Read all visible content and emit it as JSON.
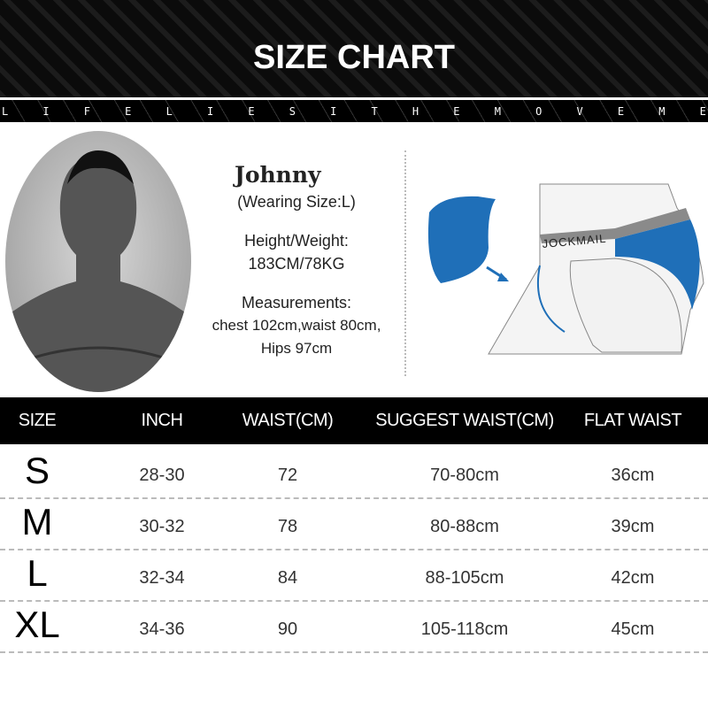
{
  "header": {
    "title": "SIZE CHART",
    "tagline_letters": [
      "L",
      "I",
      "F",
      "E",
      "L",
      "I",
      "E",
      "S",
      "I",
      "T",
      "H",
      "E",
      "M",
      "O",
      "V",
      "E",
      "M",
      "E"
    ]
  },
  "model": {
    "name": "Johnny",
    "wearing": "(Wearing Size:L)",
    "hw_label": "Height/Weight:",
    "hw_value": "183CM/78KG",
    "meas_label": "Measurements:",
    "meas_line1": "chest 102cm,waist 80cm,",
    "meas_line2": "Hips 97cm"
  },
  "illustration": {
    "brand": "JOCKMAIL",
    "accent": "#1f6fb8"
  },
  "table": {
    "headers": [
      "SIZE",
      "INCH",
      "WAIST(CM)",
      "SUGGEST WAIST(CM)",
      "FLAT WAIST"
    ],
    "rows": [
      [
        "S",
        "28-30",
        "72",
        "70-80cm",
        "36cm"
      ],
      [
        "M",
        "30-32",
        "78",
        "80-88cm",
        "39cm"
      ],
      [
        "L",
        "32-34",
        "84",
        "88-105cm",
        "42cm"
      ],
      [
        "XL",
        "34-36",
        "90",
        "105-118cm",
        "45cm"
      ]
    ]
  }
}
